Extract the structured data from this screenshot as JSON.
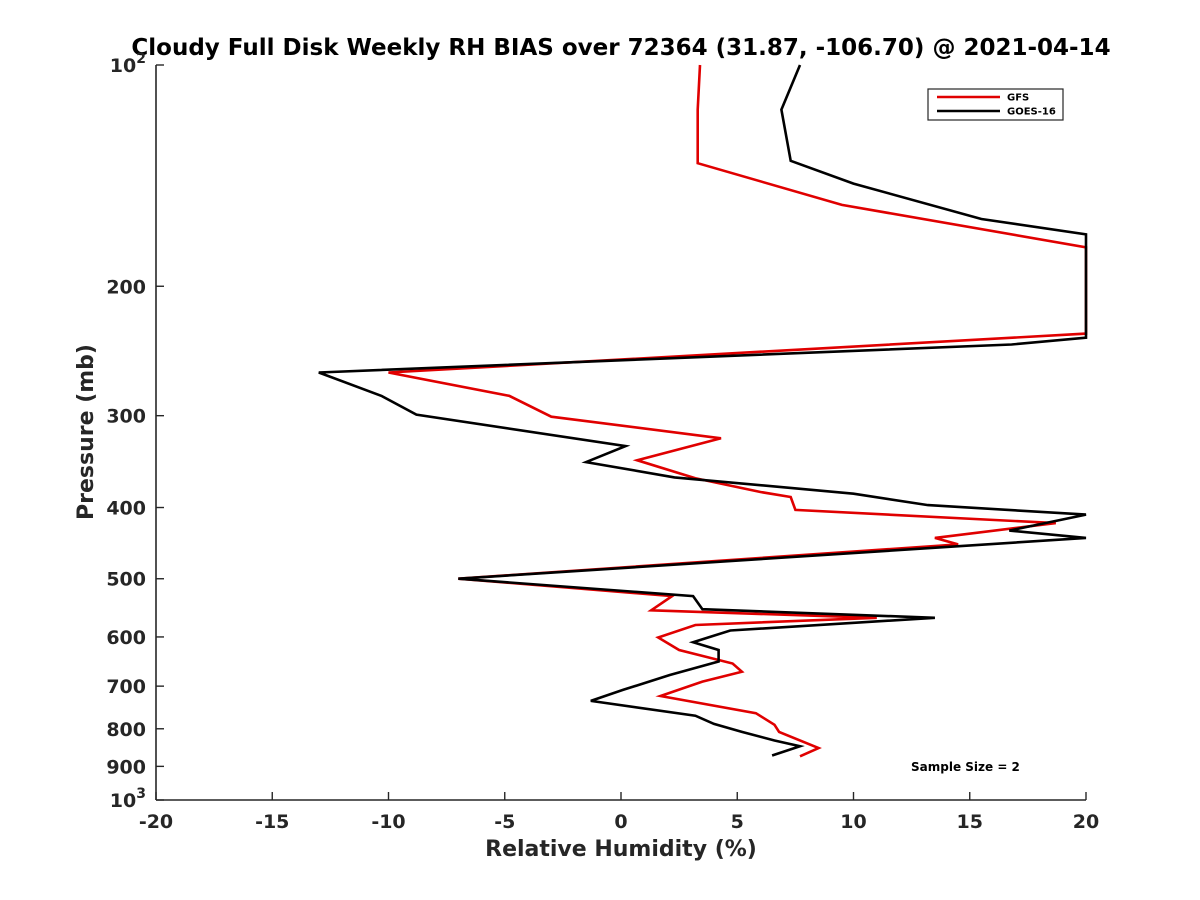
{
  "chart_data": {
    "type": "line",
    "title": "Cloudy Full Disk Weekly RH BIAS over 72364 (31.87, -106.70) @ 2021-04-14",
    "xlabel": "Relative Humidity (%)",
    "ylabel": "Pressure (mb)",
    "xlim": [
      -20,
      20
    ],
    "ylim": [
      100,
      1000
    ],
    "y_scale": "log",
    "y_reversed": true,
    "grid": false,
    "legend_position": "top-right",
    "annotation": "Sample Size = 2",
    "x_ticks": [
      "-20",
      "-15",
      "-10",
      "-5",
      "0",
      "5",
      "10",
      "15",
      "20"
    ],
    "x_tick_values": [
      -20,
      -15,
      -10,
      -5,
      0,
      5,
      10,
      15,
      20
    ],
    "y_ticks": [
      {
        "value": 100,
        "base": "10",
        "exp": "2"
      },
      {
        "value": 200,
        "label": "200"
      },
      {
        "value": 300,
        "label": "300"
      },
      {
        "value": 400,
        "label": "400"
      },
      {
        "value": 500,
        "label": "500"
      },
      {
        "value": 600,
        "label": "600"
      },
      {
        "value": 700,
        "label": "700"
      },
      {
        "value": 800,
        "label": "800"
      },
      {
        "value": 900,
        "label": "900"
      },
      {
        "value": 1000,
        "base": "10",
        "exp": "3"
      }
    ],
    "series": [
      {
        "name": "GFS",
        "color": "#e00000",
        "points": [
          [
            3.4,
            100
          ],
          [
            3.3,
            115
          ],
          [
            3.3,
            130
          ],
          [
            3.3,
            136
          ],
          [
            9.5,
            155
          ],
          [
            20,
            177
          ],
          [
            20,
            232
          ],
          [
            -10,
            262
          ],
          [
            -4.8,
            282
          ],
          [
            -3,
            301
          ],
          [
            4.3,
            322
          ],
          [
            0.7,
            345
          ],
          [
            3.2,
            365
          ],
          [
            6,
            381
          ],
          [
            7.3,
            387
          ],
          [
            7.5,
            403
          ],
          [
            18.7,
            420
          ],
          [
            13.5,
            440
          ],
          [
            14.5,
            449
          ],
          [
            -7,
            500
          ],
          [
            2.2,
            528
          ],
          [
            1.3,
            552
          ],
          [
            11,
            565
          ],
          [
            3.2,
            578
          ],
          [
            1.6,
            601
          ],
          [
            2.5,
            625
          ],
          [
            4.8,
            652
          ],
          [
            5.2,
            669
          ],
          [
            3.5,
            690
          ],
          [
            1.7,
            722
          ],
          [
            5.8,
            762
          ],
          [
            6.6,
            790
          ],
          [
            6.8,
            808
          ],
          [
            8.5,
            850
          ],
          [
            7.7,
            872
          ]
        ]
      },
      {
        "name": "GOES-16",
        "color": "#000000",
        "points": [
          [
            7.7,
            100
          ],
          [
            6.9,
            115
          ],
          [
            7.3,
            135
          ],
          [
            10,
            145
          ],
          [
            15.5,
            162
          ],
          [
            20,
            170
          ],
          [
            20,
            235
          ],
          [
            16.8,
            240
          ],
          [
            -13,
            262
          ],
          [
            -10.3,
            282
          ],
          [
            -8.8,
            299
          ],
          [
            0.2,
            330
          ],
          [
            -1.5,
            347
          ],
          [
            2.3,
            364
          ],
          [
            10,
            383
          ],
          [
            13.2,
            397
          ],
          [
            20,
            409
          ],
          [
            16.7,
            430
          ],
          [
            20,
            440
          ],
          [
            -7,
            500
          ],
          [
            3.1,
            528
          ],
          [
            3.5,
            550
          ],
          [
            13.5,
            565
          ],
          [
            4.7,
            588
          ],
          [
            3.1,
            610
          ],
          [
            4.2,
            625
          ],
          [
            4.2,
            648
          ],
          [
            2.1,
            676
          ],
          [
            0.1,
            708
          ],
          [
            -1.3,
            733
          ],
          [
            3.2,
            768
          ],
          [
            4,
            788
          ],
          [
            5.2,
            808
          ],
          [
            6.6,
            830
          ],
          [
            7.7,
            845
          ],
          [
            6.5,
            870
          ]
        ]
      }
    ]
  }
}
